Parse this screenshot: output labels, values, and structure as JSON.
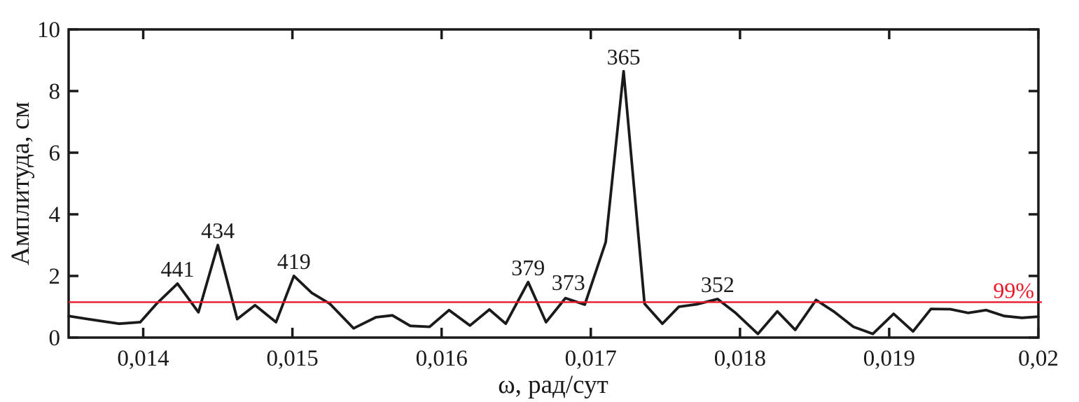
{
  "figure": {
    "background": "#ffffff",
    "axis_color": "#1a1a1a",
    "tick_label_color": "#1a1a1a",
    "peak_label_color": "#1a1a1a"
  },
  "chart_data": {
    "type": "line",
    "title": "",
    "xlabel": "ω, рад/сут",
    "ylabel": "Амплитуда, см",
    "xlim": [
      0.0135,
      0.02
    ],
    "ylim": [
      0,
      10
    ],
    "grid": false,
    "xticks": [
      0.014,
      0.015,
      0.016,
      0.017,
      0.018,
      0.019,
      0.02
    ],
    "xtick_labels": [
      "0,014",
      "0,015",
      "0,016",
      "0,017",
      "0,018",
      "0,019",
      "0,02"
    ],
    "yticks": [
      0,
      2,
      4,
      6,
      8,
      10
    ],
    "ytick_labels": [
      "0",
      "2",
      "4",
      "6",
      "8",
      "10"
    ],
    "series": [
      {
        "name": "amplitude-spectrum",
        "color": "#1a1a1a",
        "points": [
          [
            0.0135,
            0.7
          ],
          [
            0.01363,
            0.6
          ],
          [
            0.01384,
            0.45
          ],
          [
            0.01398,
            0.5
          ],
          [
            0.01409,
            1.1
          ],
          [
            0.01423,
            1.75
          ],
          [
            0.01437,
            0.82
          ],
          [
            0.0145,
            3.0
          ],
          [
            0.01463,
            0.6
          ],
          [
            0.01475,
            1.05
          ],
          [
            0.01489,
            0.5
          ],
          [
            0.01501,
            2.0
          ],
          [
            0.01513,
            1.45
          ],
          [
            0.01525,
            1.1
          ],
          [
            0.01541,
            0.3
          ],
          [
            0.01556,
            0.66
          ],
          [
            0.01567,
            0.72
          ],
          [
            0.01579,
            0.38
          ],
          [
            0.01592,
            0.35
          ],
          [
            0.01605,
            0.89
          ],
          [
            0.01619,
            0.39
          ],
          [
            0.01632,
            0.91
          ],
          [
            0.01643,
            0.45
          ],
          [
            0.01658,
            1.8
          ],
          [
            0.0167,
            0.5
          ],
          [
            0.01683,
            1.28
          ],
          [
            0.01696,
            1.07
          ],
          [
            0.0171,
            3.1
          ],
          [
            0.01722,
            8.64
          ],
          [
            0.01736,
            1.1
          ],
          [
            0.01748,
            0.45
          ],
          [
            0.01759,
            1.0
          ],
          [
            0.01771,
            1.08
          ],
          [
            0.01785,
            1.25
          ],
          [
            0.01797,
            0.8
          ],
          [
            0.01812,
            0.12
          ],
          [
            0.01825,
            0.85
          ],
          [
            0.01837,
            0.25
          ],
          [
            0.01851,
            1.22
          ],
          [
            0.01863,
            0.84
          ],
          [
            0.01876,
            0.35
          ],
          [
            0.01889,
            0.12
          ],
          [
            0.01903,
            0.77
          ],
          [
            0.01916,
            0.2
          ],
          [
            0.01928,
            0.93
          ],
          [
            0.01941,
            0.92
          ],
          [
            0.01953,
            0.8
          ],
          [
            0.01965,
            0.89
          ],
          [
            0.01977,
            0.7
          ],
          [
            0.01989,
            0.64
          ],
          [
            0.02,
            0.68
          ]
        ]
      }
    ],
    "threshold_line": {
      "value": 1.15,
      "color": "#e8192b",
      "label": "99%"
    },
    "peak_labels": [
      {
        "text": "441",
        "omega": 0.01423,
        "amplitude": 1.75
      },
      {
        "text": "434",
        "omega": 0.0145,
        "amplitude": 3.0
      },
      {
        "text": "419",
        "omega": 0.01501,
        "amplitude": 2.0
      },
      {
        "text": "379",
        "omega": 0.01658,
        "amplitude": 1.8
      },
      {
        "text": "373",
        "omega": 0.01685,
        "amplitude": 1.32
      },
      {
        "text": "365",
        "omega": 0.01722,
        "amplitude": 8.64
      },
      {
        "text": "352",
        "omega": 0.01785,
        "amplitude": 1.25
      }
    ]
  }
}
